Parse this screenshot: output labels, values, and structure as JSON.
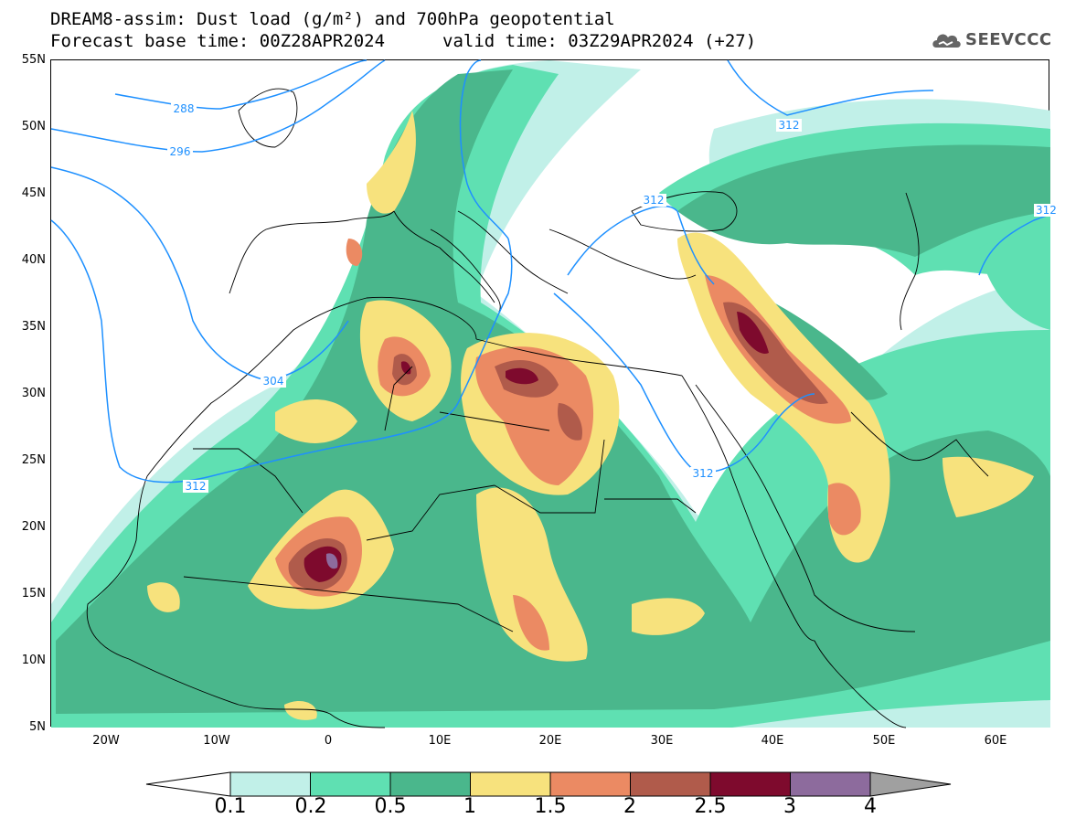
{
  "header": {
    "title_line1": "DREAM8-assim: Dust load (g/m²) and 700hPa geopotential",
    "title_line2a": "Forecast base time: 00Z28APR2024",
    "title_line2b": "valid time: 03Z29APR2024 (+27)"
  },
  "logo": {
    "text": "SEEVCCC",
    "icon": "cloud-icon"
  },
  "map": {
    "lat_labels": [
      "55N",
      "50N",
      "45N",
      "40N",
      "35N",
      "30N",
      "25N",
      "20N",
      "15N",
      "10N",
      "5N"
    ],
    "lon_labels": [
      "20W",
      "10W",
      "0",
      "10E",
      "20E",
      "30E",
      "40E",
      "50E",
      "60E"
    ],
    "contour_labels": [
      "288",
      "296",
      "304",
      "312",
      "312",
      "312",
      "312",
      "312"
    ],
    "colors": {
      "c01": "#c1f0e8",
      "c02": "#5fe0b2",
      "c05": "#4ab78c",
      "c1": "#f7e27d",
      "c15": "#eb8a63",
      "c2": "#b05b4b",
      "c25": "#7e0a2d",
      "c3": "#8d6b9d",
      "c4": "#a0a0a0",
      "contour": "#1e90ff",
      "coast": "#000000"
    }
  },
  "colorbar": {
    "labels": [
      "0.1",
      "0.2",
      "0.5",
      "1",
      "1.5",
      "2",
      "2.5",
      "3",
      "4"
    ],
    "colors": [
      "#c1f0e8",
      "#5fe0b2",
      "#4ab78c",
      "#f7e27d",
      "#eb8a63",
      "#b05b4b",
      "#7e0a2d",
      "#8d6b9d"
    ]
  }
}
